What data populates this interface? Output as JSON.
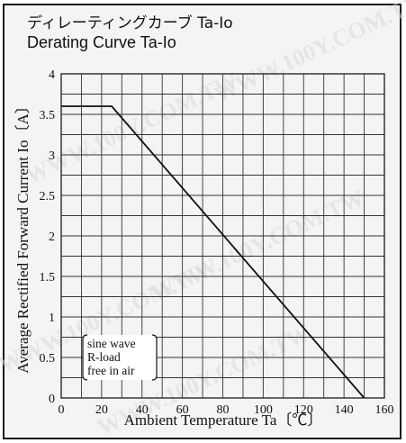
{
  "title_ja": "ディレーティングカーブ Ta-Io",
  "title_en": "Derating Curve Ta-Io",
  "watermark": "WWW.100Y.COM.TW",
  "chart_data": {
    "type": "line",
    "xlabel": "Ambient Temperature Ta〔℃〕",
    "ylabel": "Average Rectified Forward Current Io〔A〕",
    "xlim": [
      0,
      160
    ],
    "ylim": [
      0,
      4
    ],
    "x_ticks": [
      "0",
      "20",
      "40",
      "60",
      "80",
      "100",
      "120",
      "140",
      "160"
    ],
    "y_ticks": [
      "0",
      "0.5",
      "1",
      "1.5",
      "2",
      "2.5",
      "3",
      "3.5",
      "4"
    ],
    "grid": true,
    "series": [
      {
        "x": [
          0,
          25,
          150
        ],
        "y": [
          3.6,
          3.6,
          0
        ]
      }
    ],
    "annotation": [
      "sine wave",
      "R-load",
      "free in air"
    ],
    "colors": {
      "line": "#111111",
      "grid": "#333333"
    }
  }
}
